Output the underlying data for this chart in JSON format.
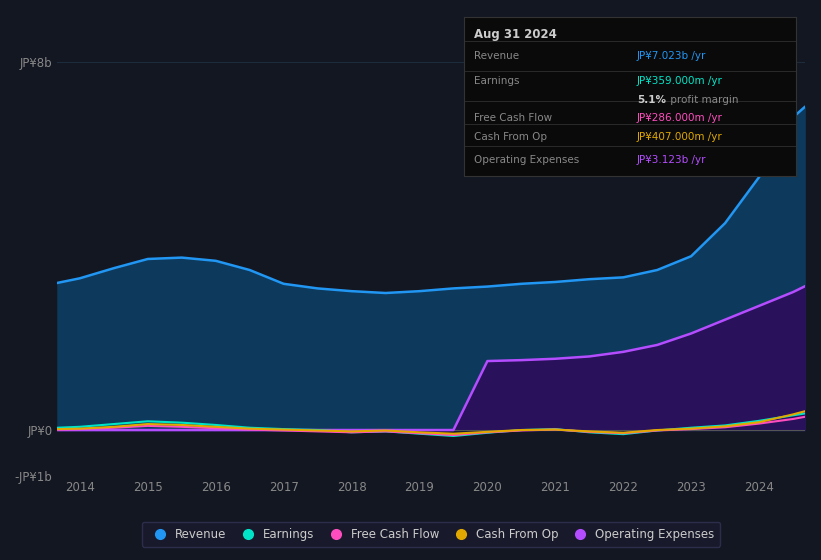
{
  "bg_color": "#131722",
  "plot_bg_color": "#131722",
  "grid_color": "#1e2d3d",
  "years": [
    2013.67,
    2014.0,
    2014.5,
    2015.0,
    2015.5,
    2016.0,
    2016.5,
    2017.0,
    2017.5,
    2018.0,
    2018.5,
    2019.0,
    2019.5,
    2020.0,
    2020.5,
    2021.0,
    2021.5,
    2022.0,
    2022.5,
    2023.0,
    2023.5,
    2024.0,
    2024.5,
    2024.67
  ],
  "revenue": [
    3.2,
    3.3,
    3.52,
    3.72,
    3.75,
    3.68,
    3.48,
    3.18,
    3.08,
    3.02,
    2.98,
    3.02,
    3.08,
    3.12,
    3.18,
    3.22,
    3.28,
    3.32,
    3.48,
    3.78,
    4.5,
    5.5,
    6.8,
    7.023
  ],
  "earnings": [
    0.05,
    0.07,
    0.13,
    0.19,
    0.16,
    0.11,
    0.05,
    0.02,
    0.0,
    -0.05,
    -0.03,
    -0.08,
    -0.13,
    -0.06,
    0.0,
    0.02,
    -0.05,
    -0.09,
    -0.01,
    0.05,
    0.1,
    0.2,
    0.32,
    0.359
  ],
  "free_cash_flow": [
    0.01,
    0.02,
    0.05,
    0.09,
    0.07,
    0.04,
    0.01,
    -0.01,
    -0.03,
    -0.05,
    -0.03,
    -0.07,
    -0.11,
    -0.05,
    -0.01,
    0.01,
    -0.04,
    -0.07,
    -0.01,
    0.02,
    0.06,
    0.14,
    0.24,
    0.286
  ],
  "cash_from_op": [
    0.02,
    0.03,
    0.07,
    0.13,
    0.11,
    0.07,
    0.03,
    0.01,
    -0.01,
    -0.03,
    -0.01,
    -0.05,
    -0.08,
    -0.04,
    0.0,
    0.01,
    -0.03,
    -0.06,
    0.0,
    0.03,
    0.08,
    0.17,
    0.34,
    0.407
  ],
  "op_expenses": [
    0.0,
    0.0,
    0.0,
    0.0,
    0.0,
    0.0,
    0.0,
    0.0,
    0.0,
    0.0,
    0.0,
    0.0,
    0.0,
    1.5,
    1.52,
    1.55,
    1.6,
    1.7,
    1.85,
    2.1,
    2.4,
    2.7,
    3.0,
    3.123
  ],
  "revenue_color": "#2196f3",
  "earnings_color": "#00e5c8",
  "free_cash_flow_color": "#ff4dbf",
  "cash_from_op_color": "#e0a800",
  "op_expenses_color": "#b44dff",
  "revenue_fill_color": "#0d3a5c",
  "op_expenses_fill_color": "#2d0d5c",
  "ylim_min": -1.0,
  "ylim_max": 8.5,
  "xtick_years": [
    2014,
    2015,
    2016,
    2017,
    2018,
    2019,
    2020,
    2021,
    2022,
    2023,
    2024
  ],
  "info_box": {
    "date": "Aug 31 2024",
    "revenue_label": "Revenue",
    "revenue_value": "JP¥7.023b /yr",
    "earnings_label": "Earnings",
    "earnings_value": "JP¥359.000m /yr",
    "profit_margin": "5.1%",
    "profit_margin_suffix": " profit margin",
    "free_cash_flow_label": "Free Cash Flow",
    "free_cash_flow_value": "JP¥286.000m /yr",
    "cash_from_op_label": "Cash From Op",
    "cash_from_op_value": "JP¥407.000m /yr",
    "op_expenses_label": "Operating Expenses",
    "op_expenses_value": "JP¥3.123b /yr"
  },
  "legend_labels": [
    "Revenue",
    "Earnings",
    "Free Cash Flow",
    "Cash From Op",
    "Operating Expenses"
  ],
  "legend_colors": [
    "#2196f3",
    "#00e5c8",
    "#ff4dbf",
    "#e0a800",
    "#b44dff"
  ]
}
